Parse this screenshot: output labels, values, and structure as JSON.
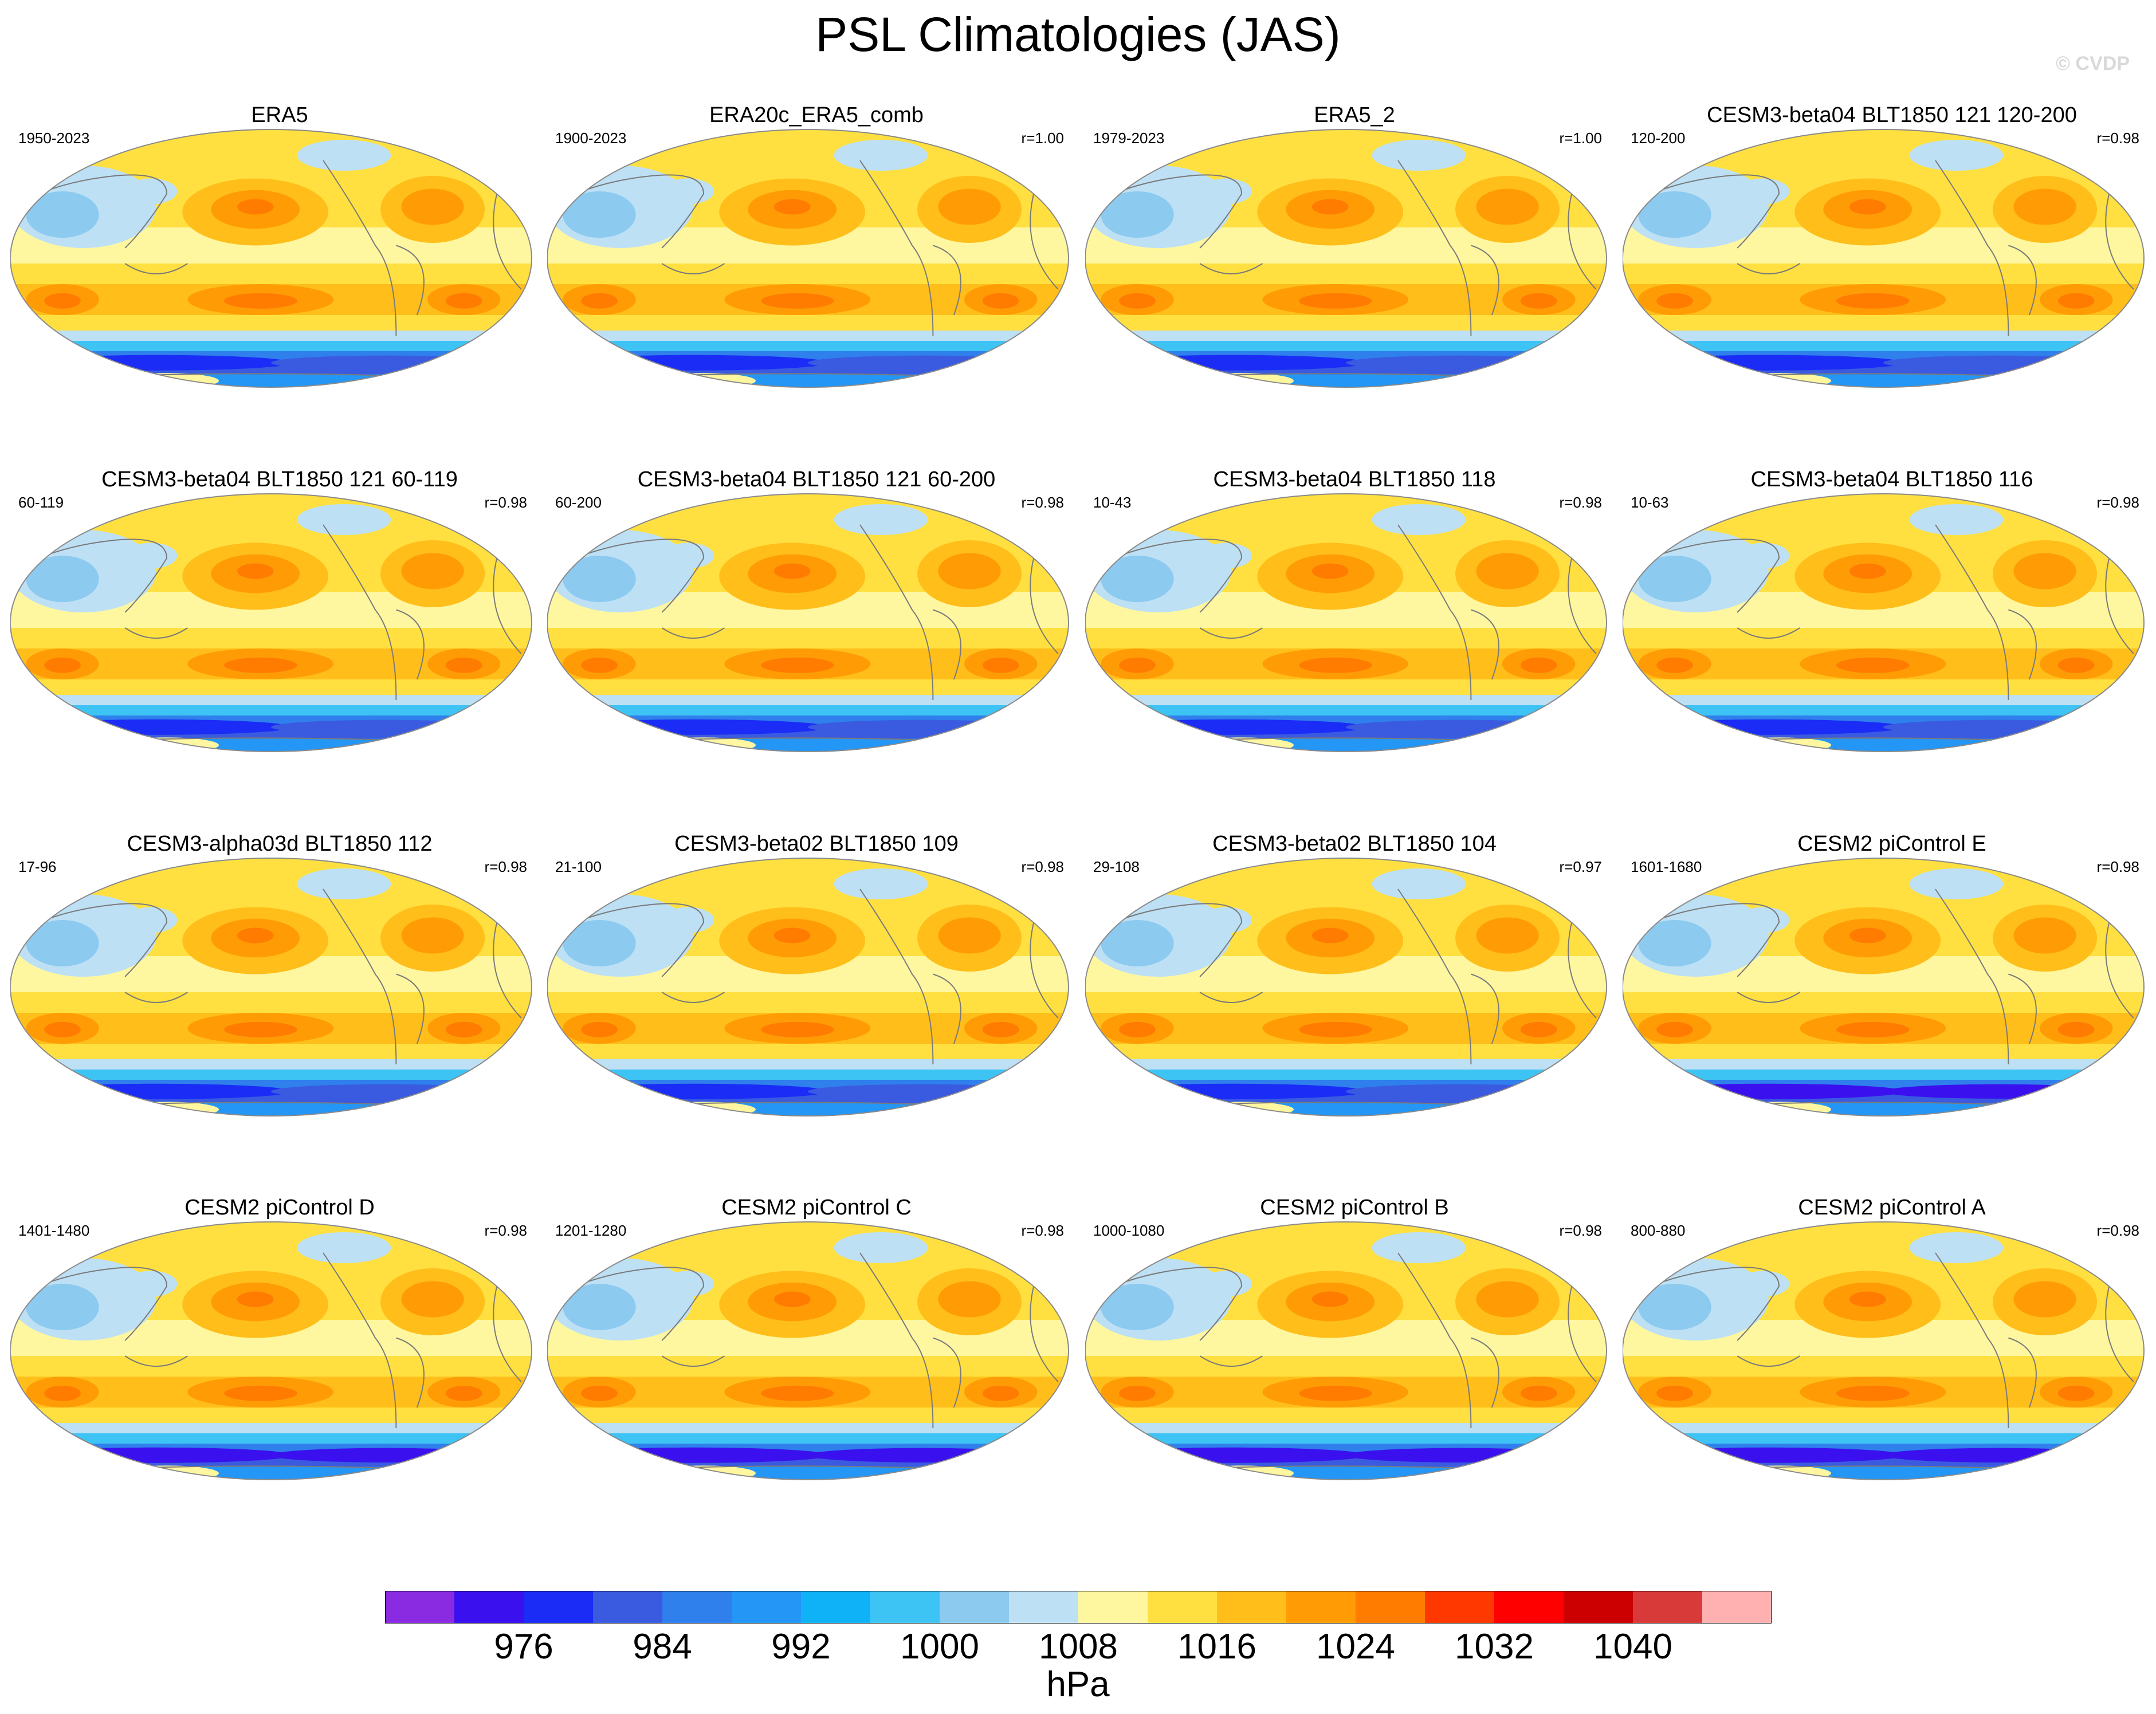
{
  "title": "PSL Climatologies (JAS)",
  "watermark": "© CVDP",
  "chart_data": {
    "type": "heatmap",
    "variable": "PSL",
    "season": "JAS",
    "units": "hPa",
    "projection": "robinson",
    "panels": [
      {
        "name": "ERA5",
        "years": "1950-2023",
        "corr": ""
      },
      {
        "name": "ERA20c_ERA5_comb",
        "years": "1900-2023",
        "corr": "r=1.00"
      },
      {
        "name": "ERA5_2",
        "years": "1979-2023",
        "corr": "r=1.00"
      },
      {
        "name": "CESM3-beta04 BLT1850 121 120-200",
        "years": "120-200",
        "corr": "r=0.98"
      },
      {
        "name": "CESM3-beta04 BLT1850 121 60-119",
        "years": "60-119",
        "corr": "r=0.98"
      },
      {
        "name": "CESM3-beta04 BLT1850 121 60-200",
        "years": "60-200",
        "corr": "r=0.98"
      },
      {
        "name": "CESM3-beta04 BLT1850 118",
        "years": "10-43",
        "corr": "r=0.98"
      },
      {
        "name": "CESM3-beta04 BLT1850 116",
        "years": "10-63",
        "corr": "r=0.98"
      },
      {
        "name": "CESM3-alpha03d BLT1850 112",
        "years": "17-96",
        "corr": "r=0.98"
      },
      {
        "name": "CESM3-beta02 BLT1850 109",
        "years": "21-100",
        "corr": "r=0.98"
      },
      {
        "name": "CESM3-beta02 BLT1850 104",
        "years": "29-108",
        "corr": "r=0.97"
      },
      {
        "name": "CESM2 piControl E",
        "years": "1601-1680",
        "corr": "r=0.98"
      },
      {
        "name": "CESM2 piControl D",
        "years": "1401-1480",
        "corr": "r=0.98"
      },
      {
        "name": "CESM2 piControl C",
        "years": "1201-1280",
        "corr": "r=0.98"
      },
      {
        "name": "CESM2 piControl B",
        "years": "1000-1080",
        "corr": "r=0.98"
      },
      {
        "name": "CESM2 piControl A",
        "years": "800-880",
        "corr": "r=0.98"
      }
    ],
    "colorbar": {
      "levels": [
        972,
        976,
        980,
        984,
        988,
        992,
        996,
        1000,
        1004,
        1008,
        1012,
        1016,
        1020,
        1024,
        1028,
        1032,
        1036,
        1040,
        1044
      ],
      "tick_labels": [
        "976",
        "984",
        "992",
        "1000",
        "1008",
        "1016",
        "1024",
        "1032",
        "1040"
      ],
      "colors": [
        "#8a2be2",
        "#3a10ee",
        "#1a2cf5",
        "#3a5ae0",
        "#2f7fec",
        "#2396f6",
        "#0fb2f7",
        "#3ec3f5",
        "#8ccaf0",
        "#bde0f5",
        "#fff7a0",
        "#ffe040",
        "#ffbe1a",
        "#ff9c05",
        "#ff7c00",
        "#ff3800",
        "#ff0000",
        "#cc0000",
        "#d83a3a",
        "#ffb0b0"
      ],
      "units": "hPa"
    }
  }
}
